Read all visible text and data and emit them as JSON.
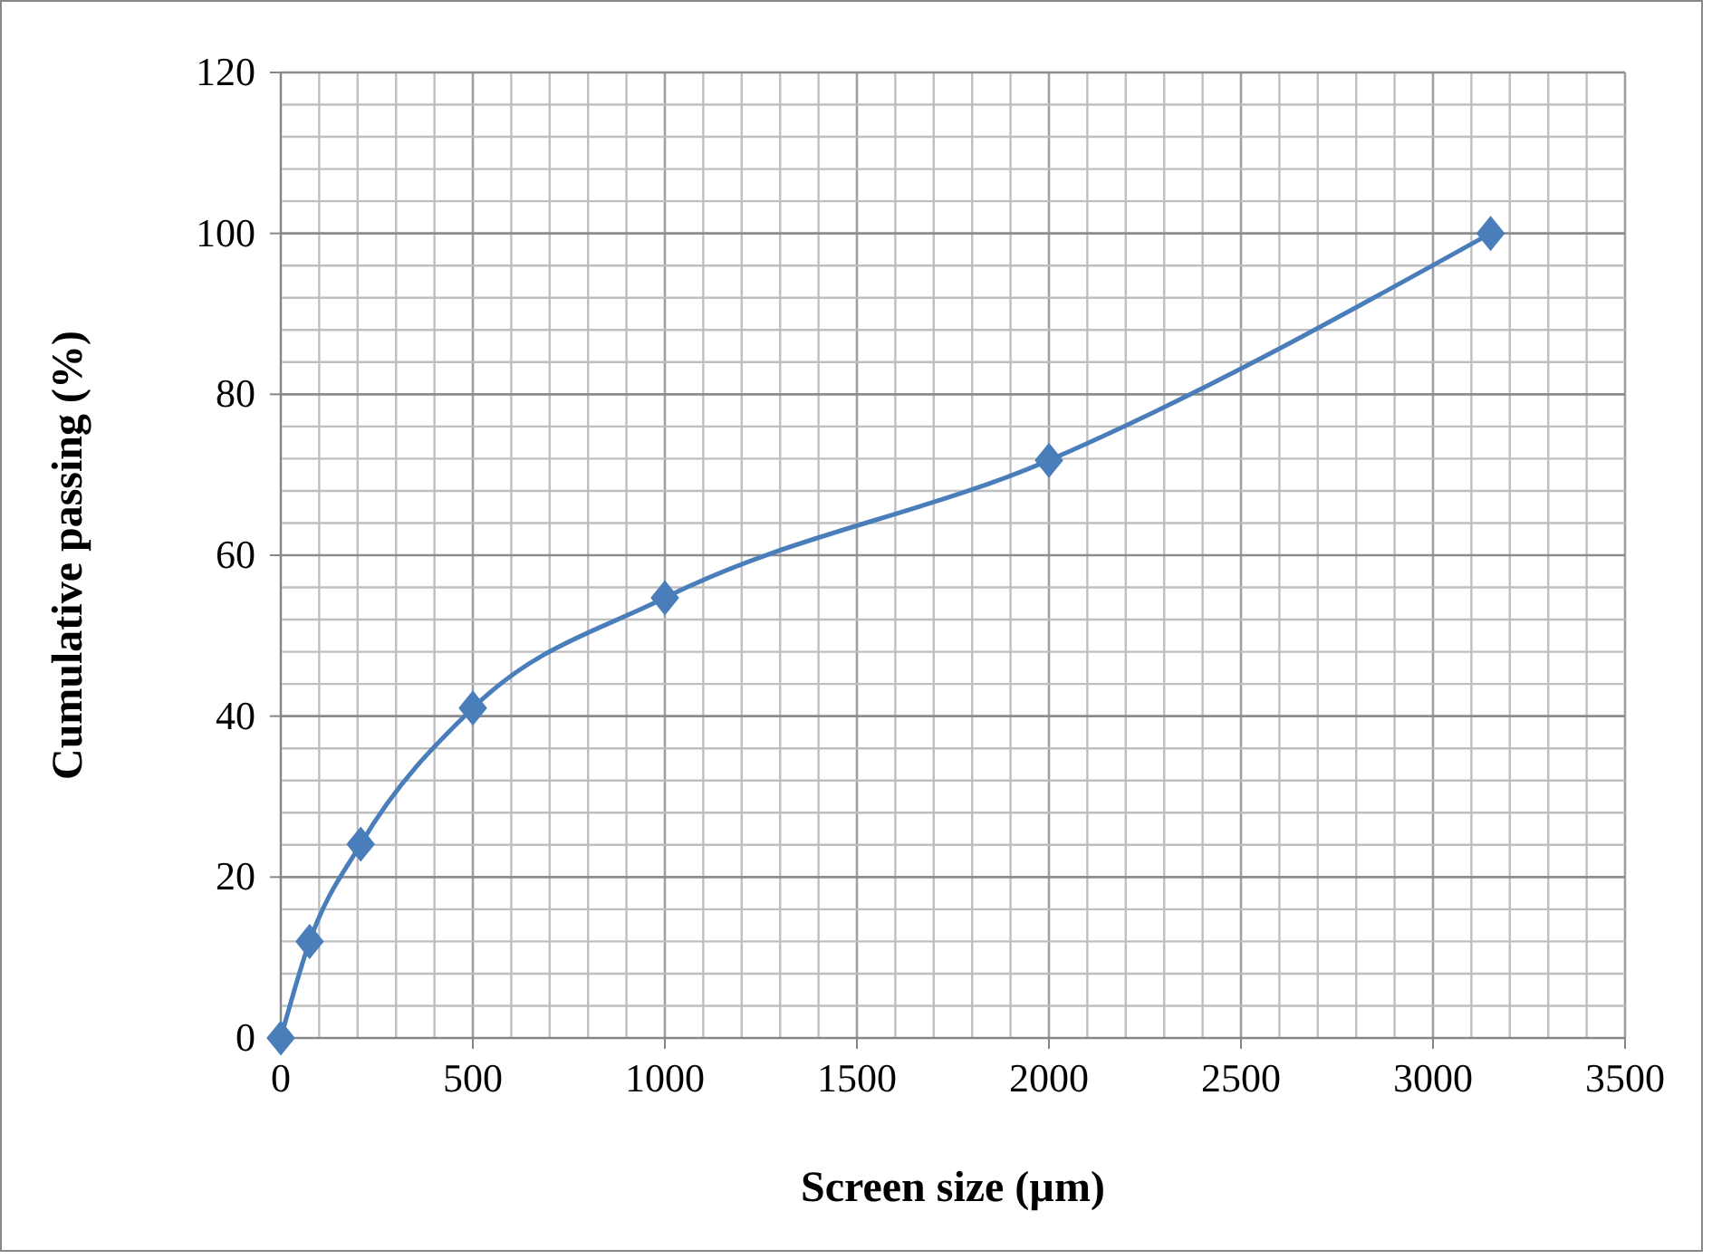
{
  "chart_data": {
    "type": "line",
    "xlabel": "Screen size (µm)",
    "ylabel": "Cumulative passing (%)",
    "x": [
      0,
      75,
      208,
      500,
      1000,
      2000,
      3150
    ],
    "series": [
      {
        "color": "#4a7ebb",
        "values": [
          0,
          12,
          24.1,
          41,
          54.7,
          71.8,
          100
        ]
      }
    ],
    "xlim": [
      0,
      3500
    ],
    "xticks": [
      0,
      500,
      1000,
      1500,
      2000,
      2500,
      3000,
      3500
    ],
    "ylim": [
      0,
      120
    ],
    "yticks": [
      0,
      20,
      40,
      60,
      80,
      100,
      120
    ],
    "grid": true,
    "marker": "diamond",
    "line_style": "solid"
  }
}
